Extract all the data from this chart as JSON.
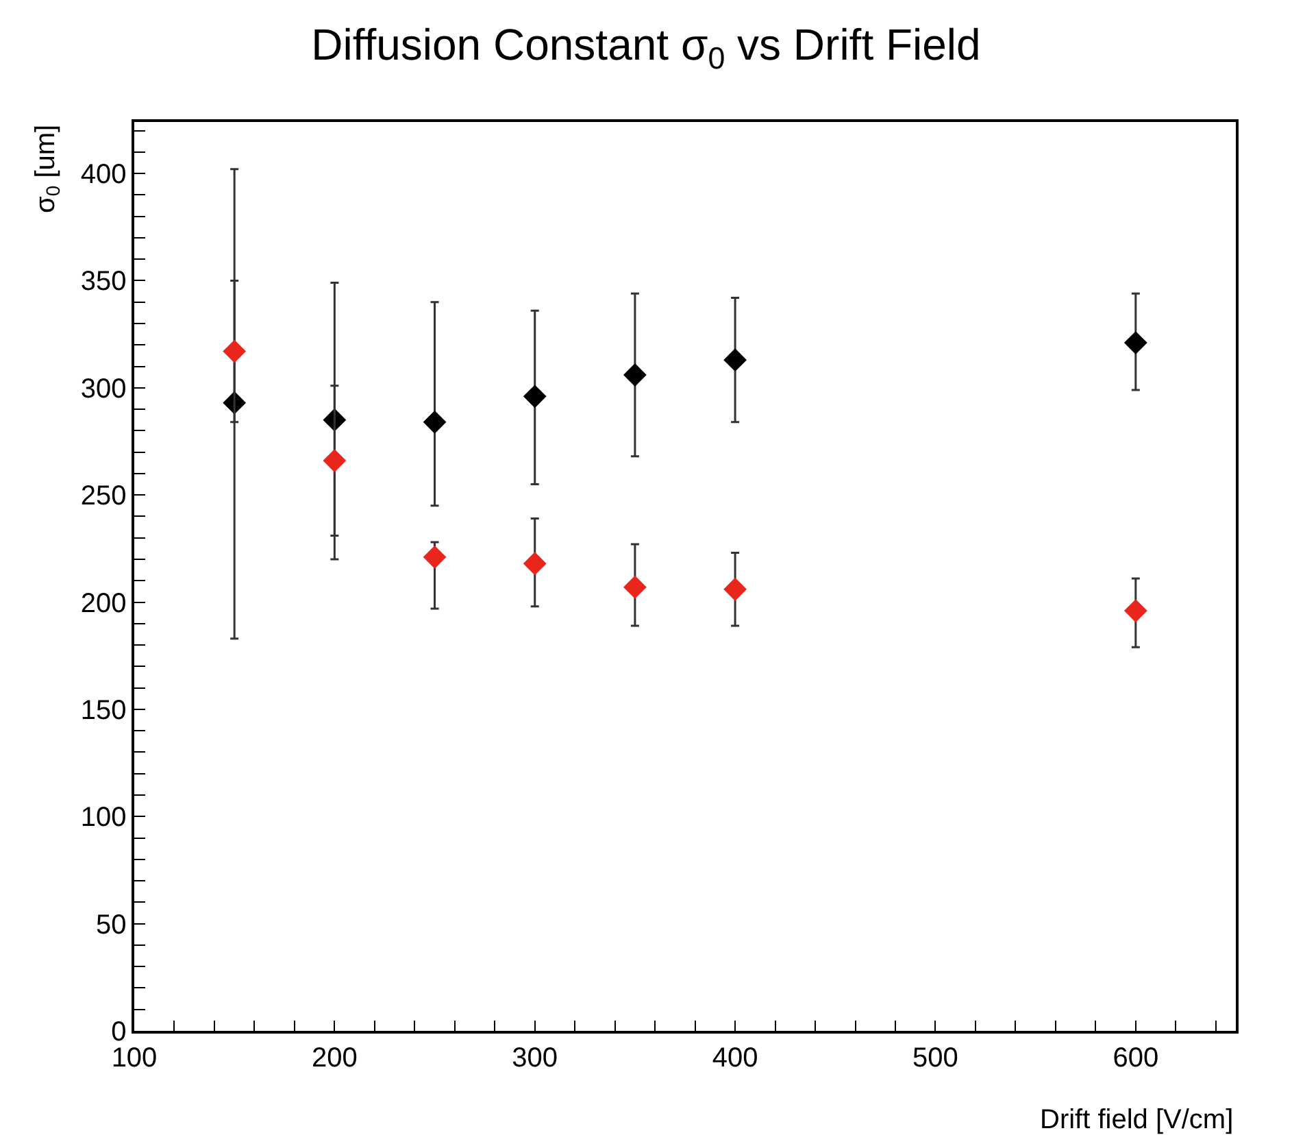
{
  "chart_data": {
    "type": "scatter",
    "title": "Diffusion Constant σ$_{0}$ vs Drift Field",
    "xlabel": "Drift field [V/cm]",
    "ylabel": "σ$_{0}$ [um]",
    "x": [
      150,
      200,
      250,
      300,
      350,
      400,
      600
    ],
    "series": [
      {
        "color": "#000000",
        "values": [
          293,
          285,
          284,
          296,
          306,
          313,
          321
        ],
        "errors": [
          [
            183,
            402
          ],
          [
            220,
            349
          ],
          [
            245,
            340
          ],
          [
            255,
            336
          ],
          [
            268,
            344
          ],
          [
            284,
            342
          ],
          [
            299,
            344
          ]
        ]
      },
      {
        "color": "#e8261c",
        "values": [
          317,
          266,
          221,
          218,
          207,
          206,
          196
        ],
        "errors": [
          [
            284,
            350
          ],
          [
            231,
            301
          ],
          [
            197,
            228
          ],
          [
            198,
            239
          ],
          [
            189,
            227
          ],
          [
            189,
            223
          ],
          [
            179,
            211
          ]
        ]
      }
    ],
    "xlim": [
      100,
      650
    ],
    "ylim": [
      0,
      424
    ],
    "xticks": [
      100,
      {
        "value": 120,
        "label": null
      },
      {
        "value": 140,
        "label": null
      },
      {
        "value": 160,
        "label": null
      },
      {
        "value": 180,
        "label": null
      },
      200,
      {
        "value": 220,
        "label": null
      },
      {
        "value": 240,
        "label": null
      },
      {
        "value": 260,
        "label": null
      },
      {
        "value": 280,
        "label": null
      },
      300,
      {
        "value": 320,
        "label": null
      },
      {
        "value": 340,
        "label": null
      },
      {
        "value": 360,
        "label": null
      },
      {
        "value": 380,
        "label": null
      },
      400,
      {
        "value": 420,
        "label": null
      },
      {
        "value": 440,
        "label": null
      },
      {
        "value": 460,
        "label": null
      },
      {
        "value": 480,
        "label": null
      },
      500,
      {
        "value": 520,
        "label": null
      },
      {
        "value": 540,
        "label": null
      },
      {
        "value": 560,
        "label": null
      },
      {
        "value": 580,
        "label": null
      },
      600,
      {
        "value": 620,
        "label": null
      },
      {
        "value": 640,
        "label": null
      }
    ],
    "yticks": [
      0,
      {
        "value": 10,
        "label": null
      },
      {
        "value": 20,
        "label": null
      },
      {
        "value": 30,
        "label": null
      },
      {
        "value": 40,
        "label": null
      },
      50,
      {
        "value": 60,
        "label": null
      },
      {
        "value": 70,
        "label": null
      },
      {
        "value": 80,
        "label": null
      },
      {
        "value": 90,
        "label": null
      },
      100,
      {
        "value": 110,
        "label": null
      },
      {
        "value": 120,
        "label": null
      },
      {
        "value": 130,
        "label": null
      },
      {
        "value": 140,
        "label": null
      },
      150,
      {
        "value": 160,
        "label": null
      },
      {
        "value": 170,
        "label": null
      },
      {
        "value": 180,
        "label": null
      },
      {
        "value": 190,
        "label": null
      },
      200,
      {
        "value": 210,
        "label": null
      },
      {
        "value": 220,
        "label": null
      },
      {
        "value": 230,
        "label": null
      },
      {
        "value": 240,
        "label": null
      },
      250,
      {
        "value": 260,
        "label": null
      },
      {
        "value": 270,
        "label": null
      },
      {
        "value": 280,
        "label": null
      },
      {
        "value": 290,
        "label": null
      },
      300,
      {
        "value": 310,
        "label": null
      },
      {
        "value": 320,
        "label": null
      },
      {
        "value": 330,
        "label": null
      },
      {
        "value": 340,
        "label": null
      },
      350,
      {
        "value": 360,
        "label": null
      },
      {
        "value": 370,
        "label": null
      },
      {
        "value": 380,
        "label": null
      },
      {
        "value": 390,
        "label": null
      },
      400,
      {
        "value": 410,
        "label": null
      },
      {
        "value": 420,
        "label": null
      }
    ],
    "marker": "diamond"
  }
}
